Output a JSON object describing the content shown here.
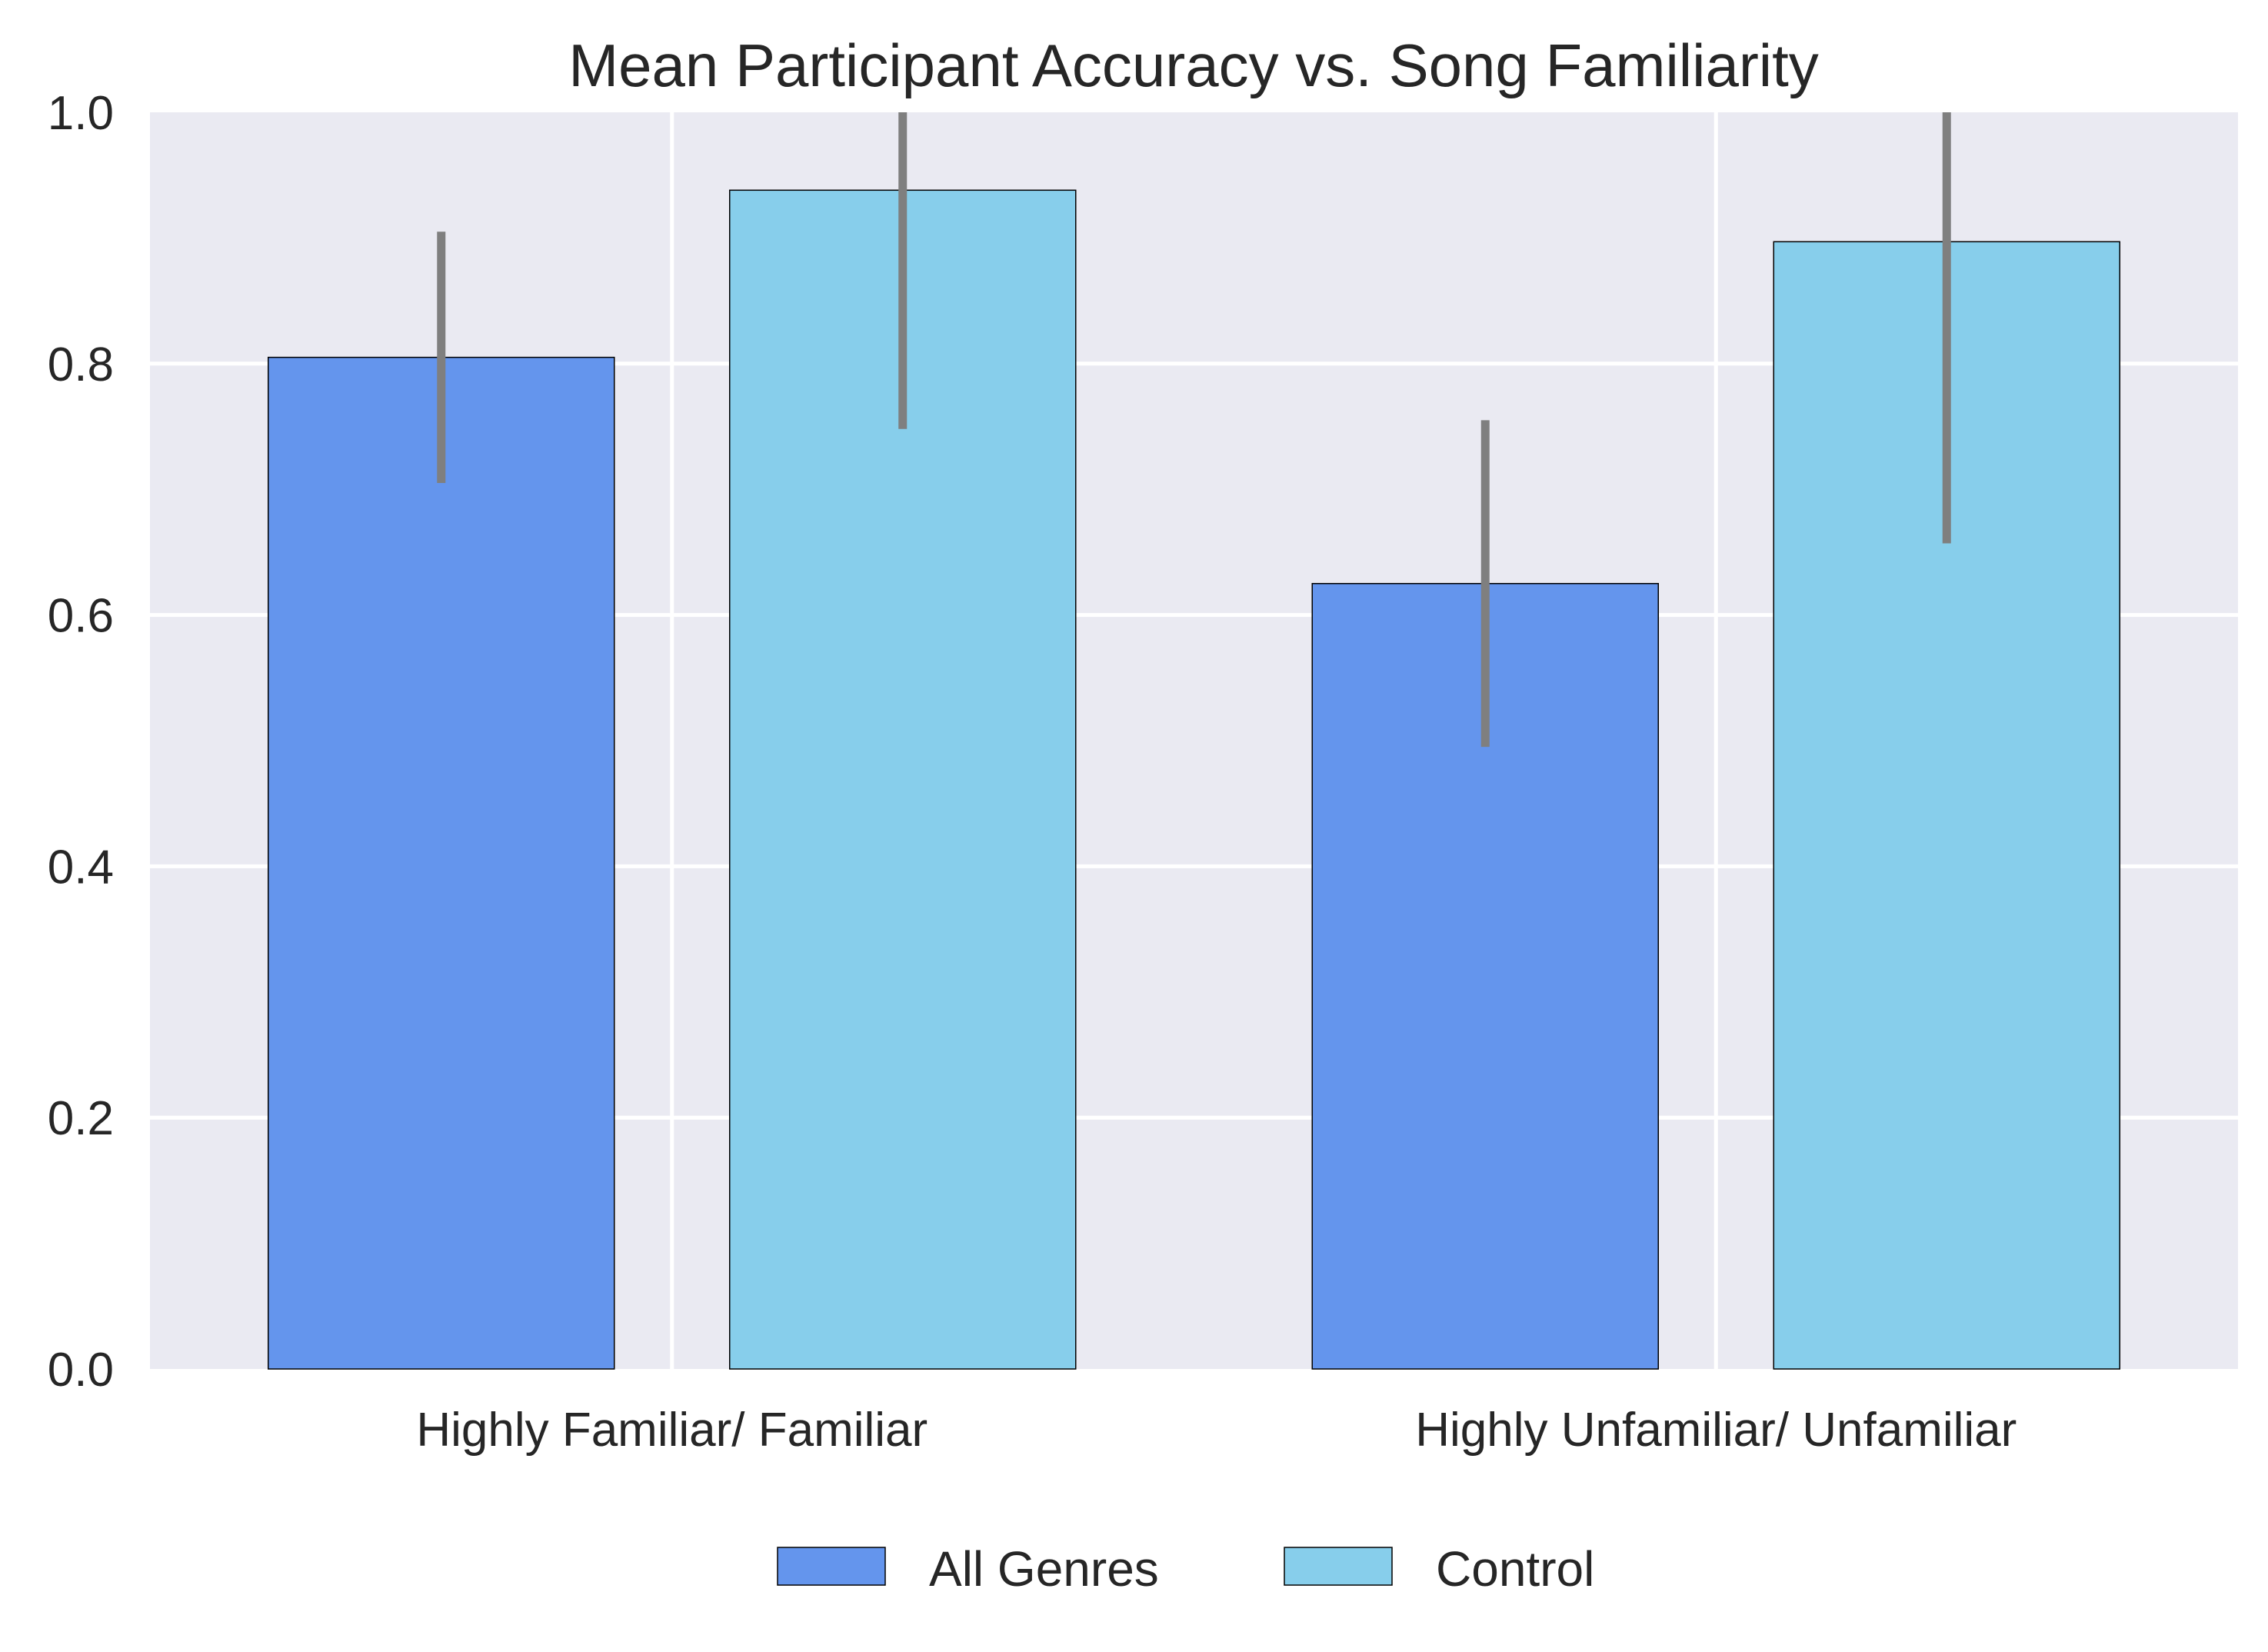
{
  "chart_data": {
    "type": "bar",
    "title": "Mean Participant Accuracy vs. Song Familiarity",
    "xlabel": "",
    "ylabel": "",
    "categories": [
      "Highly Familiar/ Familiar",
      "Highly Unfamiliar/ Unfamiliar"
    ],
    "series": [
      {
        "name": "All Genres",
        "color": "#6495ED",
        "values": [
          0.805,
          0.625
        ],
        "error_low": [
          0.705,
          0.495
        ],
        "error_high": [
          0.905,
          0.755
        ]
      },
      {
        "name": "Control",
        "color": "#87CEEB",
        "values": [
          0.938,
          0.897
        ],
        "error_low": [
          0.748,
          0.657
        ],
        "error_high": [
          1.0,
          1.0
        ]
      }
    ],
    "ylim": [
      0.0,
      1.0
    ],
    "yticks": [
      0.0,
      0.2,
      0.4,
      0.6,
      0.8,
      1.0
    ],
    "ytick_labels": [
      "0.0",
      "0.2",
      "0.4",
      "0.6",
      "0.8",
      "1.0"
    ],
    "grid": true,
    "legend_position": "bottom-center",
    "colors": {
      "plot_background": "#EAEAF2",
      "grid": "#FFFFFF",
      "error_bar": "#7F7F7F",
      "bar_edge": "#000000",
      "text": "#262626"
    }
  }
}
